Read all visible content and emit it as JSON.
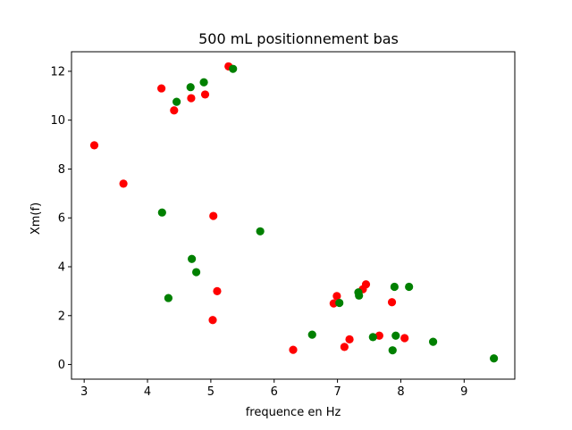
{
  "chart_data": {
    "type": "scatter",
    "title": "500 mL positionnement bas",
    "xlabel": "frequence en Hz",
    "ylabel": "Xm(f)",
    "xlim": [
      2.8,
      9.8
    ],
    "ylim": [
      -0.6,
      12.8
    ],
    "xticks": [
      3,
      4,
      5,
      6,
      7,
      8,
      9
    ],
    "yticks": [
      0,
      2,
      4,
      6,
      8,
      10,
      12
    ],
    "xtick_labels": [
      "3",
      "4",
      "5",
      "6",
      "7",
      "8",
      "9"
    ],
    "ytick_labels": [
      "0",
      "2",
      "4",
      "6",
      "8",
      "10",
      "12"
    ],
    "grid": false,
    "legend": "none",
    "series": [
      {
        "color": "#ff0000",
        "points": [
          [
            3.16,
            8.97
          ],
          [
            3.62,
            7.4
          ],
          [
            4.22,
            11.3
          ],
          [
            4.42,
            10.4
          ],
          [
            4.69,
            10.9
          ],
          [
            4.91,
            11.05
          ],
          [
            5.28,
            12.2
          ],
          [
            5.04,
            6.08
          ],
          [
            5.1,
            3.0
          ],
          [
            5.03,
            1.82
          ],
          [
            6.3,
            0.6
          ],
          [
            6.94,
            2.5
          ],
          [
            6.99,
            2.8
          ],
          [
            7.11,
            0.72
          ],
          [
            7.19,
            1.03
          ],
          [
            7.4,
            3.08
          ],
          [
            7.45,
            3.28
          ],
          [
            7.66,
            1.18
          ],
          [
            7.86,
            2.55
          ],
          [
            8.06,
            1.08
          ]
        ]
      },
      {
        "color": "#008000",
        "points": [
          [
            4.46,
            10.75
          ],
          [
            4.68,
            11.35
          ],
          [
            4.89,
            11.55
          ],
          [
            5.35,
            12.1
          ],
          [
            4.23,
            6.22
          ],
          [
            5.78,
            5.45
          ],
          [
            4.7,
            4.32
          ],
          [
            4.77,
            3.78
          ],
          [
            4.33,
            2.72
          ],
          [
            6.6,
            1.22
          ],
          [
            7.03,
            2.52
          ],
          [
            7.33,
            2.95
          ],
          [
            7.34,
            2.82
          ],
          [
            7.56,
            1.12
          ],
          [
            7.9,
            3.18
          ],
          [
            7.92,
            1.18
          ],
          [
            8.13,
            3.18
          ],
          [
            7.87,
            0.58
          ],
          [
            8.51,
            0.93
          ],
          [
            9.47,
            0.25
          ]
        ]
      }
    ]
  }
}
